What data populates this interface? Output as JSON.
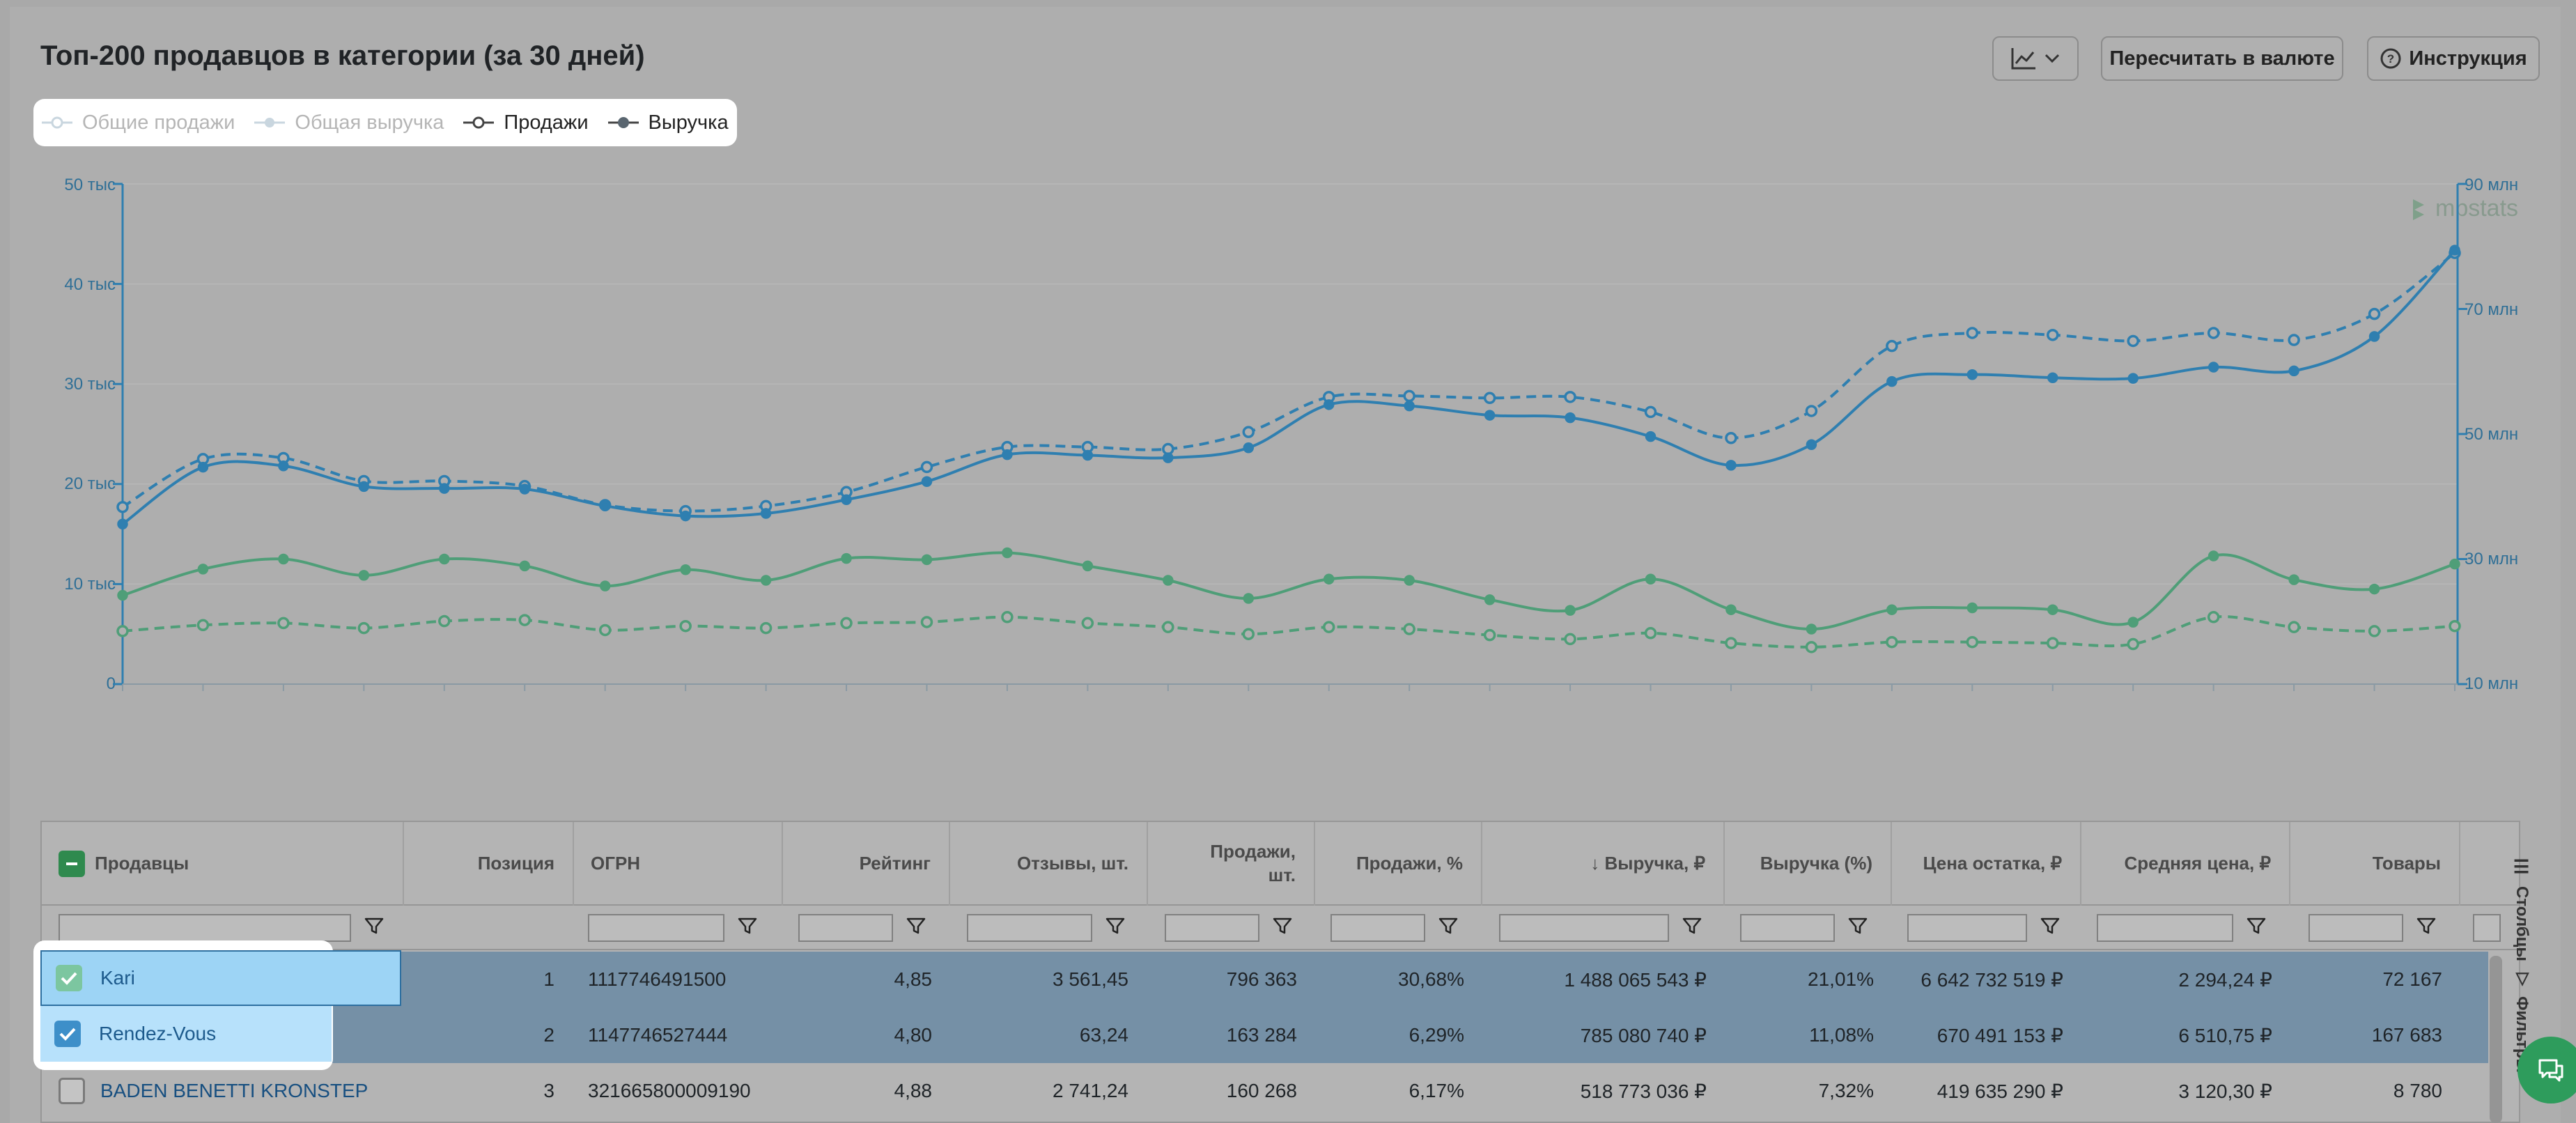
{
  "header": {
    "title": "Топ-200 продавцов в категории (за 30 дней)",
    "recalc_label": "Пересчитать в валюте",
    "instruction_label": "Инструкция"
  },
  "legend": [
    {
      "label": "Общие продажи",
      "active": false
    },
    {
      "label": "Общая выручка",
      "active": false
    },
    {
      "label": "Продажи",
      "active": true
    },
    {
      "label": "Выручка",
      "active": true
    }
  ],
  "colors": {
    "blue": "#2f7fb0",
    "green": "#4f9e78",
    "selected_row": "#7590a6",
    "chat": "#2e9c5c"
  },
  "watermark": "mpstats",
  "chart_data": {
    "type": "line",
    "y_left_ticks": [
      "0",
      "10 тыс",
      "20 тыс",
      "30 тыс",
      "40 тыс",
      "50 тыс"
    ],
    "y_left_range": [
      0,
      50000
    ],
    "y_right_ticks": [
      "10 млн",
      "30 млн",
      "50 млн",
      "70 млн",
      "90 млн"
    ],
    "y_right_range": [
      10000000,
      90000000
    ],
    "series": [
      {
        "name": "Продажи",
        "seller": "Kari",
        "axis": "left",
        "style": "dashed",
        "color": "blue",
        "values": [
          17700,
          22500,
          22600,
          20300,
          20300,
          19800,
          17900,
          17300,
          17800,
          19200,
          21700,
          23700,
          23700,
          23500,
          25200,
          28700,
          28800,
          28600,
          28700,
          27200,
          24600,
          27300,
          33800,
          35100,
          34900,
          34300,
          35100,
          34400,
          37000,
          43100
        ]
      },
      {
        "name": "Выручка",
        "seller": "Kari",
        "axis": "right",
        "style": "solid",
        "color": "blue",
        "values": [
          35600,
          44700,
          44900,
          41600,
          41300,
          41200,
          38500,
          36900,
          37300,
          39500,
          42400,
          46700,
          46600,
          46200,
          47800,
          54700,
          54500,
          53000,
          52600,
          49600,
          45000,
          48300,
          58400,
          59500,
          59000,
          58900,
          60700,
          60100,
          65600,
          79400
        ]
      },
      {
        "name": "Продажи",
        "seller": "Rendez-Vous",
        "axis": "left",
        "style": "dashed",
        "color": "green",
        "values": [
          5300,
          5900,
          6100,
          5600,
          6300,
          6400,
          5400,
          5800,
          5600,
          6100,
          6200,
          6700,
          6100,
          5700,
          5000,
          5700,
          5500,
          4900,
          4500,
          5100,
          4100,
          3700,
          4200,
          4200,
          4100,
          4000,
          6700,
          5700,
          5300,
          5800
        ]
      },
      {
        "name": "Выручка",
        "seller": "Rendez-Vous",
        "axis": "right",
        "style": "solid",
        "color": "green",
        "values": [
          24200,
          28400,
          30000,
          27400,
          30000,
          28900,
          25700,
          28300,
          26600,
          30100,
          29900,
          31000,
          28900,
          26600,
          23700,
          26800,
          26600,
          23500,
          21800,
          26800,
          21900,
          18800,
          21900,
          22200,
          21900,
          19900,
          30500,
          26700,
          25200,
          29200
        ]
      }
    ]
  },
  "table": {
    "columns": [
      "Продавцы",
      "Позиция",
      "ОГРН",
      "Рейтинг",
      "Отзывы, шт.",
      "Продажи, шт.",
      "Продажи, %",
      "↓ Выручка, ₽",
      "Выручка (%)",
      "Цена остатка, ₽",
      "Средняя цена, ₽",
      "Товары"
    ],
    "rows": [
      {
        "name": "Kari",
        "position": "1",
        "ogrn": "1117746491500",
        "rating": "4,85",
        "reviews": "3 561,45",
        "sales": "796 363",
        "sales_pct": "30,68%",
        "revenue": "1 488 065 543 ₽",
        "revenue_pct": "21,01%",
        "stock_price": "6 642 732 519 ₽",
        "avg_price": "2 294,24 ₽",
        "items": "72 167",
        "selected": true
      },
      {
        "name": "Rendez-Vous",
        "position": "2",
        "ogrn": "1147746527444",
        "rating": "4,80",
        "reviews": "63,24",
        "sales": "163 284",
        "sales_pct": "6,29%",
        "revenue": "785 080 740 ₽",
        "revenue_pct": "11,08%",
        "stock_price": "670 491 153 ₽",
        "avg_price": "6 510,75 ₽",
        "items": "167 683",
        "selected": true
      },
      {
        "name": "BADEN BENETTI KRONSTEP",
        "position": "3",
        "ogrn": "321665800009190",
        "rating": "4,88",
        "reviews": "2 741,24",
        "sales": "160 268",
        "sales_pct": "6,17%",
        "revenue": "518 773 036 ₽",
        "revenue_pct": "7,32%",
        "stock_price": "419 635 290 ₽",
        "avg_price": "3 120,30 ₽",
        "items": "8 780",
        "selected": false
      }
    ]
  },
  "side_tabs": {
    "columns": "Столбцы",
    "filters": "Фильтры"
  }
}
